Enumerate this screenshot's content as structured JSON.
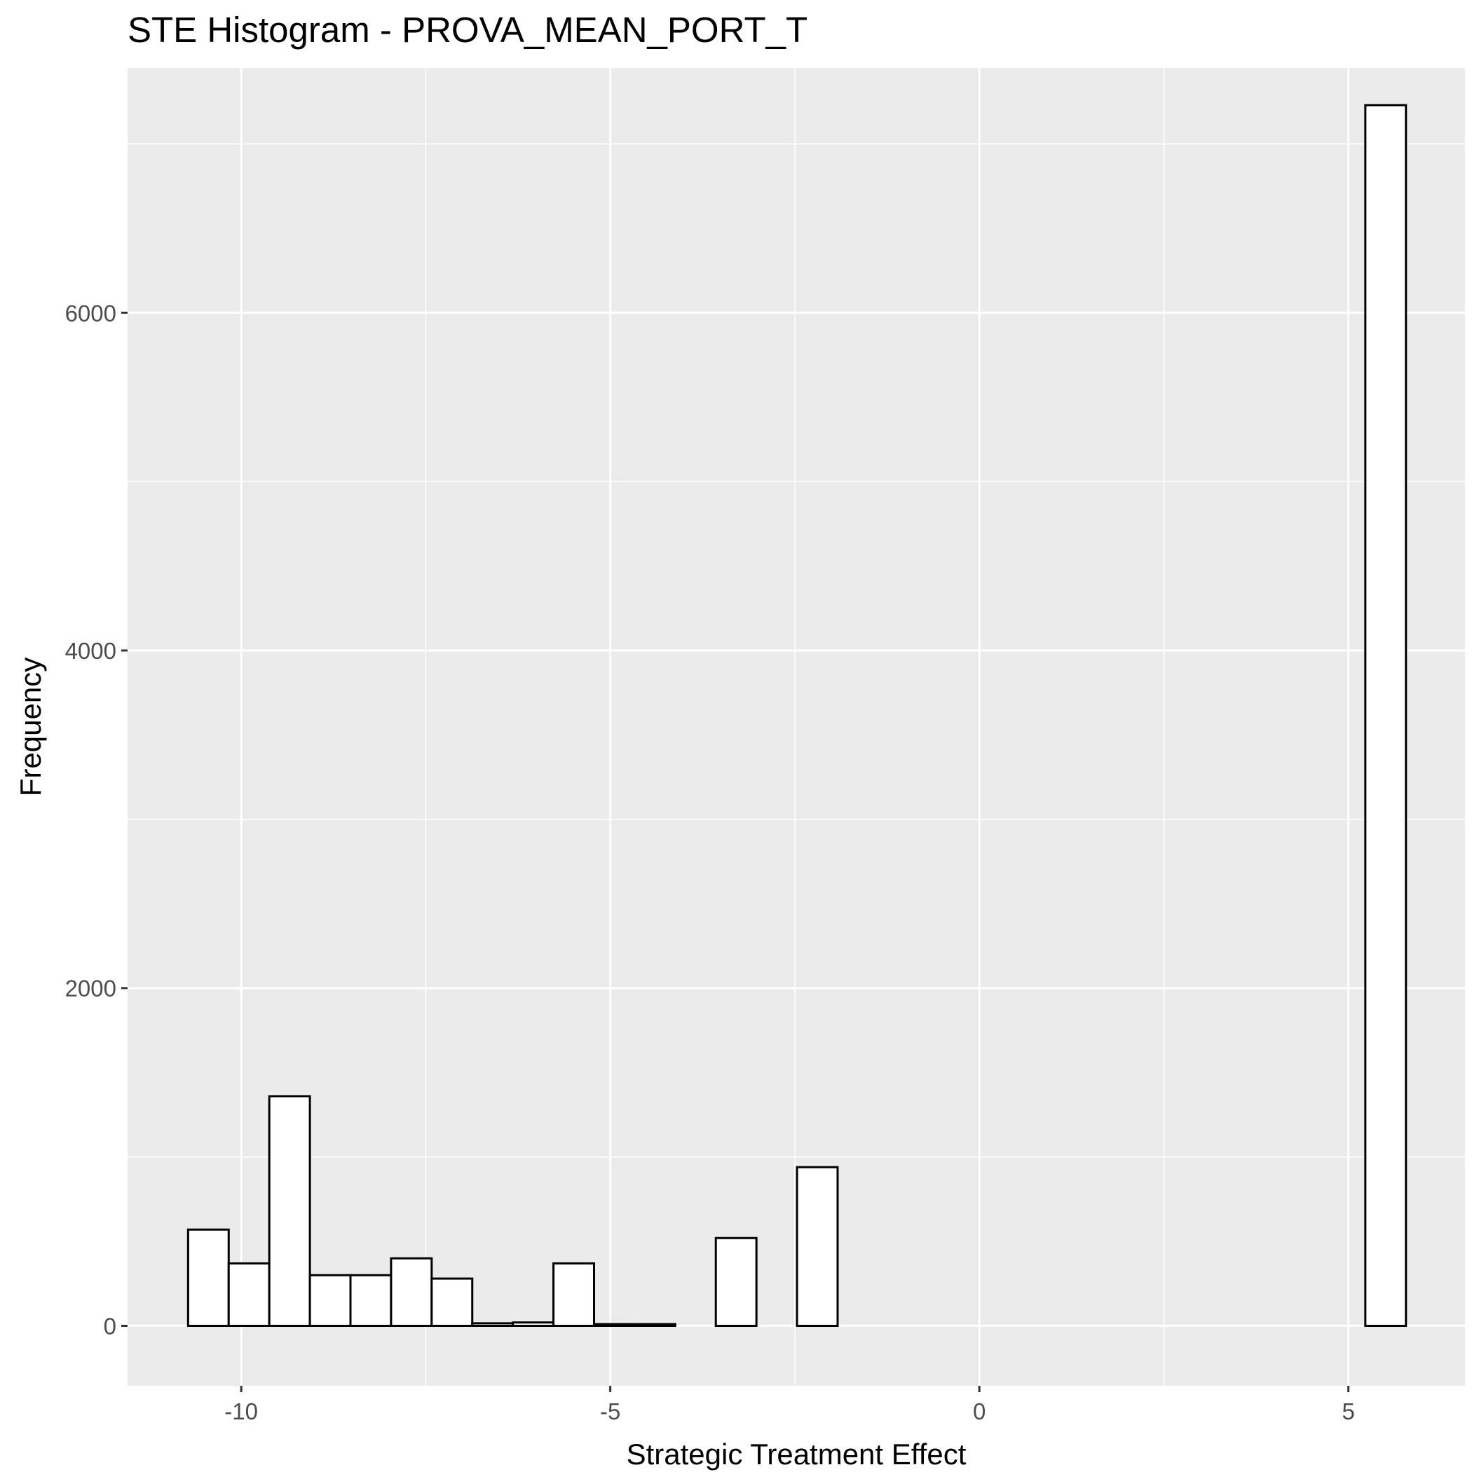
{
  "chart_data": {
    "type": "bar",
    "title": "STE Histogram -  PROVA_MEAN_PORT_T",
    "xlabel": "Strategic Treatment Effect",
    "ylabel": "Frequency",
    "xlim": [
      -11.54,
      6.58
    ],
    "ylim": [
      -355,
      7450
    ],
    "x_ticks": [
      -10,
      -5,
      0,
      5
    ],
    "x_tick_labels": [
      "-10",
      "-5",
      "0",
      "5"
    ],
    "y_ticks": [
      0,
      2000,
      4000,
      6000
    ],
    "y_tick_labels": [
      "0",
      "2000",
      "4000",
      "6000"
    ],
    "x_minor_gridlines": [
      -7.5,
      -2.5,
      2.5
    ],
    "y_minor_gridlines": [
      1000,
      3000,
      5000,
      7000
    ],
    "grid": true,
    "panel_background": "#ebebeb",
    "bar_fill": "#ffffff",
    "bar_outline": "#000000",
    "bins": [
      {
        "x0": -10.72,
        "x1": -10.17,
        "count": 570
      },
      {
        "x0": -10.17,
        "x1": -9.62,
        "count": 370
      },
      {
        "x0": -9.62,
        "x1": -9.07,
        "count": 1360
      },
      {
        "x0": -9.07,
        "x1": -8.52,
        "count": 300
      },
      {
        "x0": -8.52,
        "x1": -7.97,
        "count": 300
      },
      {
        "x0": -7.97,
        "x1": -7.42,
        "count": 400
      },
      {
        "x0": -7.42,
        "x1": -6.87,
        "count": 280
      },
      {
        "x0": -6.87,
        "x1": -6.32,
        "count": 15
      },
      {
        "x0": -6.32,
        "x1": -5.77,
        "count": 20
      },
      {
        "x0": -5.77,
        "x1": -5.22,
        "count": 370
      },
      {
        "x0": -5.22,
        "x1": -4.67,
        "count": 10
      },
      {
        "x0": -4.67,
        "x1": -4.12,
        "count": 10
      },
      {
        "x0": -4.12,
        "x1": -3.57,
        "count": 0
      },
      {
        "x0": -3.57,
        "x1": -3.02,
        "count": 520
      },
      {
        "x0": -3.02,
        "x1": -2.47,
        "count": 0
      },
      {
        "x0": -2.47,
        "x1": -1.92,
        "count": 940
      },
      {
        "x0": -1.92,
        "x1": -1.37,
        "count": 0
      },
      {
        "x0": -1.37,
        "x1": -0.82,
        "count": 0
      },
      {
        "x0": -0.82,
        "x1": -0.27,
        "count": 0
      },
      {
        "x0": -0.27,
        "x1": 0.28,
        "count": 0
      },
      {
        "x0": 0.28,
        "x1": 0.83,
        "count": 0
      },
      {
        "x0": 0.83,
        "x1": 1.38,
        "count": 0
      },
      {
        "x0": 1.38,
        "x1": 1.93,
        "count": 0
      },
      {
        "x0": 1.93,
        "x1": 2.48,
        "count": 0
      },
      {
        "x0": 2.48,
        "x1": 3.03,
        "count": 0
      },
      {
        "x0": 3.03,
        "x1": 3.58,
        "count": 0
      },
      {
        "x0": 3.58,
        "x1": 4.13,
        "count": 0
      },
      {
        "x0": 4.13,
        "x1": 4.68,
        "count": 0
      },
      {
        "x0": 4.68,
        "x1": 5.23,
        "count": 0
      },
      {
        "x0": 5.23,
        "x1": 5.78,
        "count": 7230
      }
    ]
  }
}
